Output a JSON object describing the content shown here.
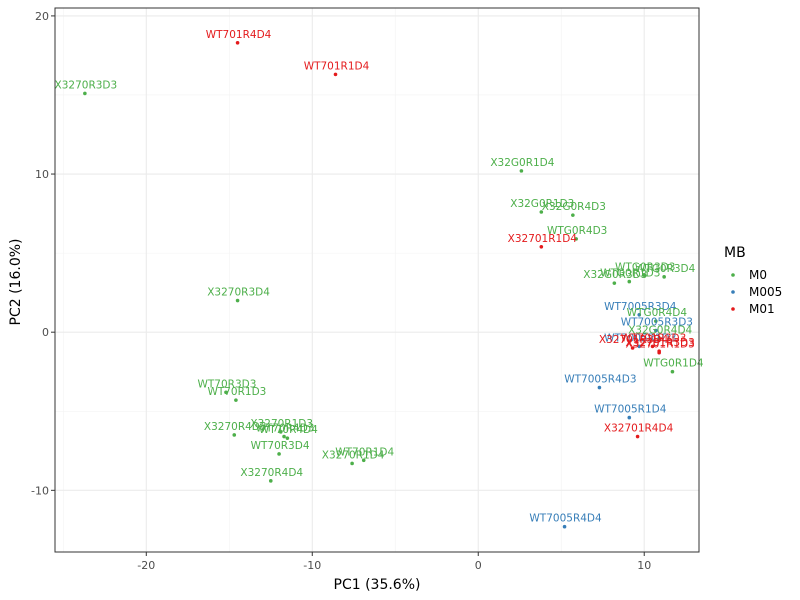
{
  "chart_data": {
    "type": "scatter",
    "title": "",
    "xlabel": "PC1 (35.6%)",
    "ylabel": "PC2 (16.0%)",
    "xlim": [
      -25.5,
      13.3
    ],
    "ylim": [
      -13.9,
      20.5
    ],
    "xticks": [
      -20,
      -10,
      0,
      10
    ],
    "yticks": [
      -10,
      0,
      10,
      20
    ],
    "grid": true,
    "legend": {
      "title": "MB",
      "position": "right",
      "entries": [
        {
          "name": "M0",
          "color": "#4daf4a"
        },
        {
          "name": "M005",
          "color": "#377eb8"
        },
        {
          "name": "M01",
          "color": "#e41a1c"
        }
      ]
    },
    "points": [
      {
        "label": "WT701R4D4",
        "group": "M01",
        "x": -14.5,
        "y": 18.3
      },
      {
        "label": "WT701R1D4",
        "group": "M01",
        "x": -8.6,
        "y": 16.3
      },
      {
        "label": "X3270R3D3",
        "group": "M0",
        "x": -23.7,
        "y": 15.1
      },
      {
        "label": "X32G0R1D4",
        "group": "M0",
        "x": 2.6,
        "y": 10.2
      },
      {
        "label": "X32G0R1D3",
        "group": "M0",
        "x": 3.8,
        "y": 7.6
      },
      {
        "label": "X32G0R4D3",
        "group": "M0",
        "x": 5.7,
        "y": 7.4
      },
      {
        "label": "WTG0R4D3",
        "group": "M0",
        "x": 5.9,
        "y": 5.9
      },
      {
        "label": "X32701R1D4",
        "group": "M01",
        "x": 3.8,
        "y": 5.4
      },
      {
        "label": "WTG0R3D3",
        "group": "M0",
        "x": 10.0,
        "y": 3.6
      },
      {
        "label": "WTG0R3D4",
        "group": "M0",
        "x": 11.2,
        "y": 3.5
      },
      {
        "label": "X32G0R3D3",
        "group": "M0",
        "x": 8.2,
        "y": 3.1
      },
      {
        "label": "WTG0R1D3",
        "group": "M0",
        "x": 9.1,
        "y": 3.2
      },
      {
        "label": "X3270R3D4",
        "group": "M0",
        "x": -14.5,
        "y": 2.0
      },
      {
        "label": "WT7005R3D4",
        "group": "M005",
        "x": 9.7,
        "y": 1.1
      },
      {
        "label": "WTG0R4D4",
        "group": "M0",
        "x": 10.7,
        "y": 0.7
      },
      {
        "label": "WT7005R3D3",
        "group": "M005",
        "x": 10.7,
        "y": 0.1
      },
      {
        "label": "X32G0R4D4",
        "group": "M0",
        "x": 10.9,
        "y": -0.4
      },
      {
        "label": "WT7005R1D3",
        "group": "M005",
        "x": 9.7,
        "y": -0.9
      },
      {
        "label": "WT701R3D3",
        "group": "M01",
        "x": 10.5,
        "y": -0.9
      },
      {
        "label": "X32701R3D3",
        "group": "M01",
        "x": 10.9,
        "y": -1.2
      },
      {
        "label": "X32701R3D4",
        "group": "M01",
        "x": 9.3,
        "y": -1.0
      },
      {
        "label": "X32701R1D3",
        "group": "M01",
        "x": 10.9,
        "y": -1.3
      },
      {
        "label": "WTG0R1D4",
        "group": "M0",
        "x": 11.7,
        "y": -2.5
      },
      {
        "label": "WT7005R4D3",
        "group": "M005",
        "x": 7.3,
        "y": -3.5
      },
      {
        "label": "WT70R3D3",
        "group": "M0",
        "x": -15.2,
        "y": -3.8
      },
      {
        "label": "WT70R1D3",
        "group": "M0",
        "x": -14.6,
        "y": -4.3
      },
      {
        "label": "WT7005R1D4",
        "group": "M005",
        "x": 9.1,
        "y": -5.4
      },
      {
        "label": "X32701R4D4",
        "group": "M01",
        "x": 9.6,
        "y": -6.6
      },
      {
        "label": "X3270R1D3",
        "group": "M0",
        "x": -11.9,
        "y": -6.3
      },
      {
        "label": "X3270R4D3",
        "group": "M0",
        "x": -14.7,
        "y": -6.5
      },
      {
        "label": "WT70R4D3",
        "group": "M0",
        "x": -11.7,
        "y": -6.6
      },
      {
        "label": "WT70R4D4",
        "group": "M0",
        "x": -11.5,
        "y": -6.7
      },
      {
        "label": "WT70R3D4",
        "group": "M0",
        "x": -12.0,
        "y": -7.7
      },
      {
        "label": "WT70R1D4",
        "group": "M0",
        "x": -6.9,
        "y": -8.1
      },
      {
        "label": "X3270R1D4",
        "group": "M0",
        "x": -7.6,
        "y": -8.3
      },
      {
        "label": "X3270R4D4",
        "group": "M0",
        "x": -12.5,
        "y": -9.4
      },
      {
        "label": "WT7005R4D4",
        "group": "M005",
        "x": 5.2,
        "y": -12.3
      }
    ]
  }
}
